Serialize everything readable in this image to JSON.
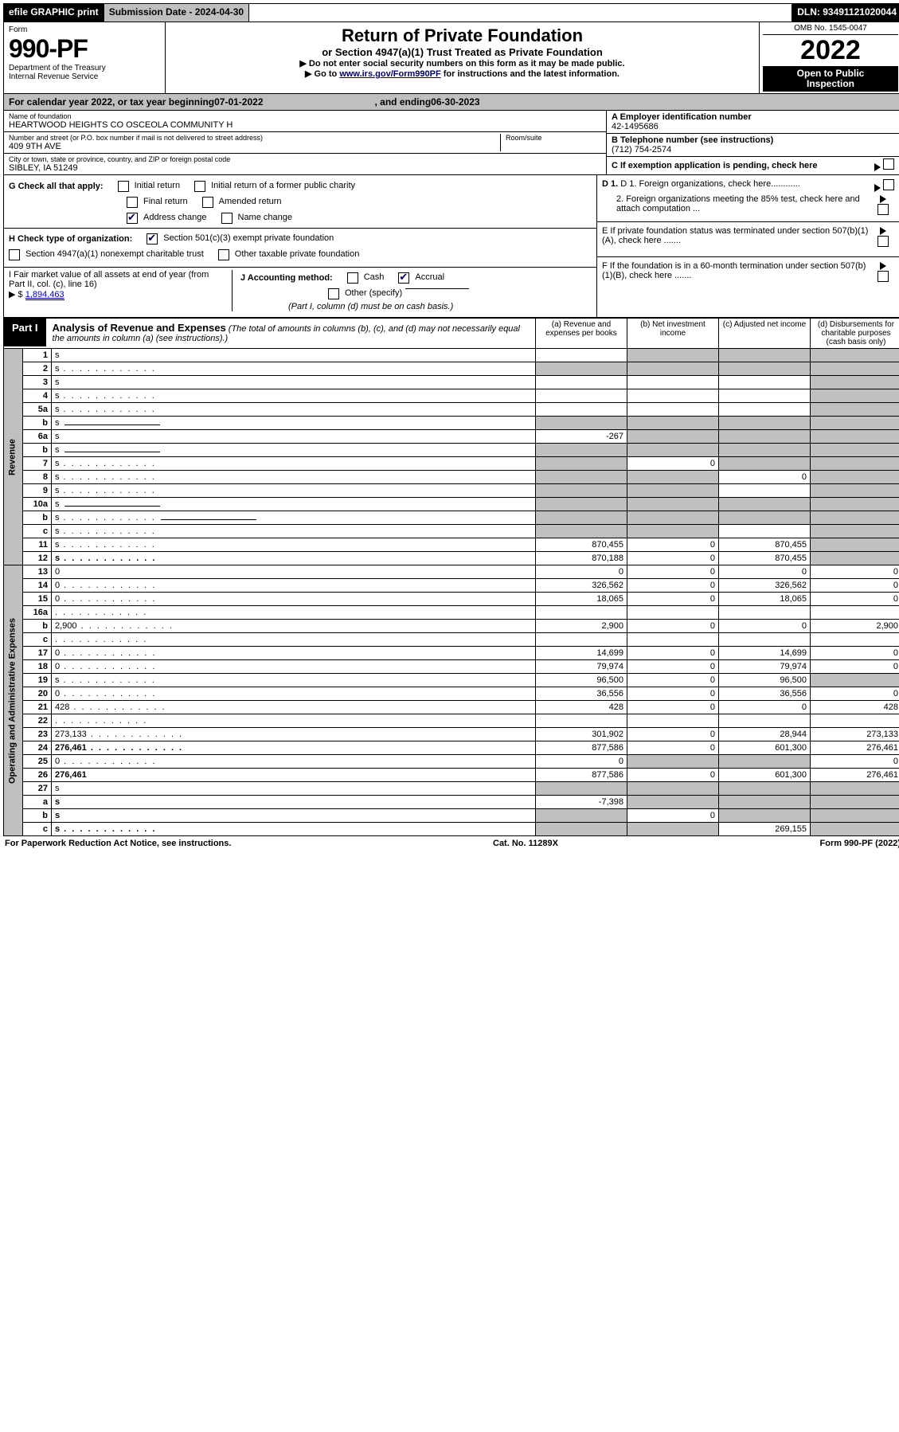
{
  "topbar": {
    "efile": "efile GRAPHIC print",
    "sub_lbl": "Submission Date - 2024-04-30",
    "dln": "DLN: 93491121020044"
  },
  "header": {
    "form": "Form",
    "num": "990-PF",
    "dept": "Department of the Treasury",
    "irs": "Internal Revenue Service",
    "title": "Return of Private Foundation",
    "subtitle": "or Section 4947(a)(1) Trust Treated as Private Foundation",
    "note1": "▶ Do not enter social security numbers on this form as it may be made public.",
    "note2_pre": "▶ Go to ",
    "note2_link": "www.irs.gov/Form990PF",
    "note2_post": " for instructions and the latest information.",
    "omb": "OMB No. 1545-0047",
    "year": "2022",
    "otp1": "Open to Public",
    "otp2": "Inspection"
  },
  "cal": {
    "pre": "For calendar year 2022, or tax year beginning ",
    "beg": "07-01-2022",
    "mid": " , and ending ",
    "end": "06-30-2023"
  },
  "id": {
    "name_lbl": "Name of foundation",
    "name": "HEARTWOOD HEIGHTS CO OSCEOLA COMMUNITY H",
    "addr_lbl": "Number and street (or P.O. box number if mail is not delivered to street address)",
    "addr": "409 9TH AVE",
    "room_lbl": "Room/suite",
    "city_lbl": "City or town, state or province, country, and ZIP or foreign postal code",
    "city": "SIBLEY, IA  51249",
    "a_lbl": "A Employer identification number",
    "a_val": "42-1495686",
    "b_lbl": "B Telephone number (see instructions)",
    "b_val": "(712) 754-2574",
    "c_lbl": "C If exemption application is pending, check here"
  },
  "g": {
    "g_lbl": "G Check all that apply:",
    "g1": "Initial return",
    "g2": "Initial return of a former public charity",
    "g3": "Final return",
    "g4": "Amended return",
    "g5": "Address change",
    "g6": "Name change",
    "h_lbl": "H Check type of organization:",
    "h1": "Section 501(c)(3) exempt private foundation",
    "h2": "Section 4947(a)(1) nonexempt charitable trust",
    "h3": "Other taxable private foundation",
    "i_lbl": "I Fair market value of all assets at end of year (from Part II, col. (c), line 16)",
    "i_pre": "▶ $ ",
    "i_val": "1,894,463",
    "j_lbl": "J Accounting method:",
    "j1": "Cash",
    "j2": "Accrual",
    "j_other": "Other (specify)",
    "j_note": "(Part I, column (d) must be on cash basis.)",
    "d1": "D 1. Foreign organizations, check here............",
    "d2": "2. Foreign organizations meeting the 85% test, check here and attach computation ...",
    "e": "E  If private foundation status was terminated under section 507(b)(1)(A), check here .......",
    "f": "F  If the foundation is in a 60-month termination under section 507(b)(1)(B), check here ......."
  },
  "part1": {
    "tag": "Part I",
    "title": "Analysis of Revenue and Expenses",
    "note": " (The total of amounts in columns (b), (c), and (d) may not necessarily equal the amounts in column (a) (see instructions).)",
    "col_a": "(a)   Revenue and expenses per books",
    "col_b": "(b)   Net investment income",
    "col_c": "(c)   Adjusted net income",
    "col_d": "(d)   Disbursements for charitable purposes (cash basis only)"
  },
  "sidelabels": {
    "rev": "Revenue",
    "exp": "Operating and Administrative Expenses"
  },
  "rows": [
    {
      "n": "1",
      "d": "s",
      "a": "",
      "b": "s",
      "c": "s"
    },
    {
      "n": "2",
      "d": "s",
      "dots": true,
      "a": "s",
      "b": "s",
      "c": "s"
    },
    {
      "n": "3",
      "d": "s",
      "a": "",
      "b": "",
      "c": ""
    },
    {
      "n": "4",
      "d": "s",
      "dots": true,
      "a": "",
      "b": "",
      "c": ""
    },
    {
      "n": "5a",
      "d": "s",
      "dots": true,
      "a": "",
      "b": "",
      "c": ""
    },
    {
      "n": "b",
      "d": "s",
      "sub": true,
      "a": "s",
      "b": "s",
      "c": "s"
    },
    {
      "n": "6a",
      "d": "s",
      "a": "-267",
      "b": "s",
      "c": "s"
    },
    {
      "n": "b",
      "d": "s",
      "sub": true,
      "a": "s",
      "b": "s",
      "c": "s"
    },
    {
      "n": "7",
      "d": "s",
      "dots": true,
      "a": "s",
      "b": "0",
      "c": "s"
    },
    {
      "n": "8",
      "d": "s",
      "dots": true,
      "a": "s",
      "b": "s",
      "c": "0"
    },
    {
      "n": "9",
      "d": "s",
      "dots": true,
      "a": "s",
      "b": "s",
      "c": ""
    },
    {
      "n": "10a",
      "d": "s",
      "sub": true,
      "a": "s",
      "b": "s",
      "c": "s"
    },
    {
      "n": "b",
      "d": "s",
      "dots": true,
      "sub": true,
      "a": "s",
      "b": "s",
      "c": "s"
    },
    {
      "n": "c",
      "d": "s",
      "dots": true,
      "a": "s",
      "b": "s",
      "c": ""
    },
    {
      "n": "11",
      "d": "s",
      "dots": true,
      "a": "870,455",
      "b": "0",
      "c": "870,455"
    },
    {
      "n": "12",
      "d": "s",
      "dots": true,
      "bold": true,
      "a": "870,188",
      "b": "0",
      "c": "870,455"
    },
    {
      "n": "13",
      "d": "0",
      "a": "0",
      "b": "0",
      "c": "0"
    },
    {
      "n": "14",
      "d": "0",
      "dots": true,
      "a": "326,562",
      "b": "0",
      "c": "326,562"
    },
    {
      "n": "15",
      "d": "0",
      "dots": true,
      "a": "18,065",
      "b": "0",
      "c": "18,065"
    },
    {
      "n": "16a",
      "d": "",
      "dots": true,
      "a": "",
      "b": "",
      "c": ""
    },
    {
      "n": "b",
      "d": "2,900",
      "dots": true,
      "a": "2,900",
      "b": "0",
      "c": "0"
    },
    {
      "n": "c",
      "d": "",
      "dots": true,
      "a": "",
      "b": "",
      "c": ""
    },
    {
      "n": "17",
      "d": "0",
      "dots": true,
      "a": "14,699",
      "b": "0",
      "c": "14,699"
    },
    {
      "n": "18",
      "d": "0",
      "dots": true,
      "a": "79,974",
      "b": "0",
      "c": "79,974"
    },
    {
      "n": "19",
      "d": "s",
      "dots": true,
      "a": "96,500",
      "b": "0",
      "c": "96,500"
    },
    {
      "n": "20",
      "d": "0",
      "dots": true,
      "a": "36,556",
      "b": "0",
      "c": "36,556"
    },
    {
      "n": "21",
      "d": "428",
      "dots": true,
      "a": "428",
      "b": "0",
      "c": "0"
    },
    {
      "n": "22",
      "d": "",
      "dots": true,
      "a": "",
      "b": "",
      "c": ""
    },
    {
      "n": "23",
      "d": "273,133",
      "dots": true,
      "a": "301,902",
      "b": "0",
      "c": "28,944"
    },
    {
      "n": "24",
      "d": "276,461",
      "dots": true,
      "bold": true,
      "a": "877,586",
      "b": "0",
      "c": "601,300"
    },
    {
      "n": "25",
      "d": "0",
      "dots": true,
      "a": "0",
      "b": "s",
      "c": "s"
    },
    {
      "n": "26",
      "d": "276,461",
      "bold": true,
      "a": "877,586",
      "b": "0",
      "c": "601,300"
    },
    {
      "n": "27",
      "d": "s",
      "a": "s",
      "b": "s",
      "c": "s"
    },
    {
      "n": "a",
      "d": "s",
      "bold": true,
      "a": "-7,398",
      "b": "s",
      "c": "s"
    },
    {
      "n": "b",
      "d": "s",
      "bold": true,
      "a": "s",
      "b": "0",
      "c": "s"
    },
    {
      "n": "c",
      "d": "s",
      "dots": true,
      "bold": true,
      "a": "s",
      "b": "s",
      "c": "269,155"
    }
  ],
  "footer": {
    "l": "For Paperwork Reduction Act Notice, see instructions.",
    "c": "Cat. No. 11289X",
    "r": "Form 990-PF (2022)"
  }
}
